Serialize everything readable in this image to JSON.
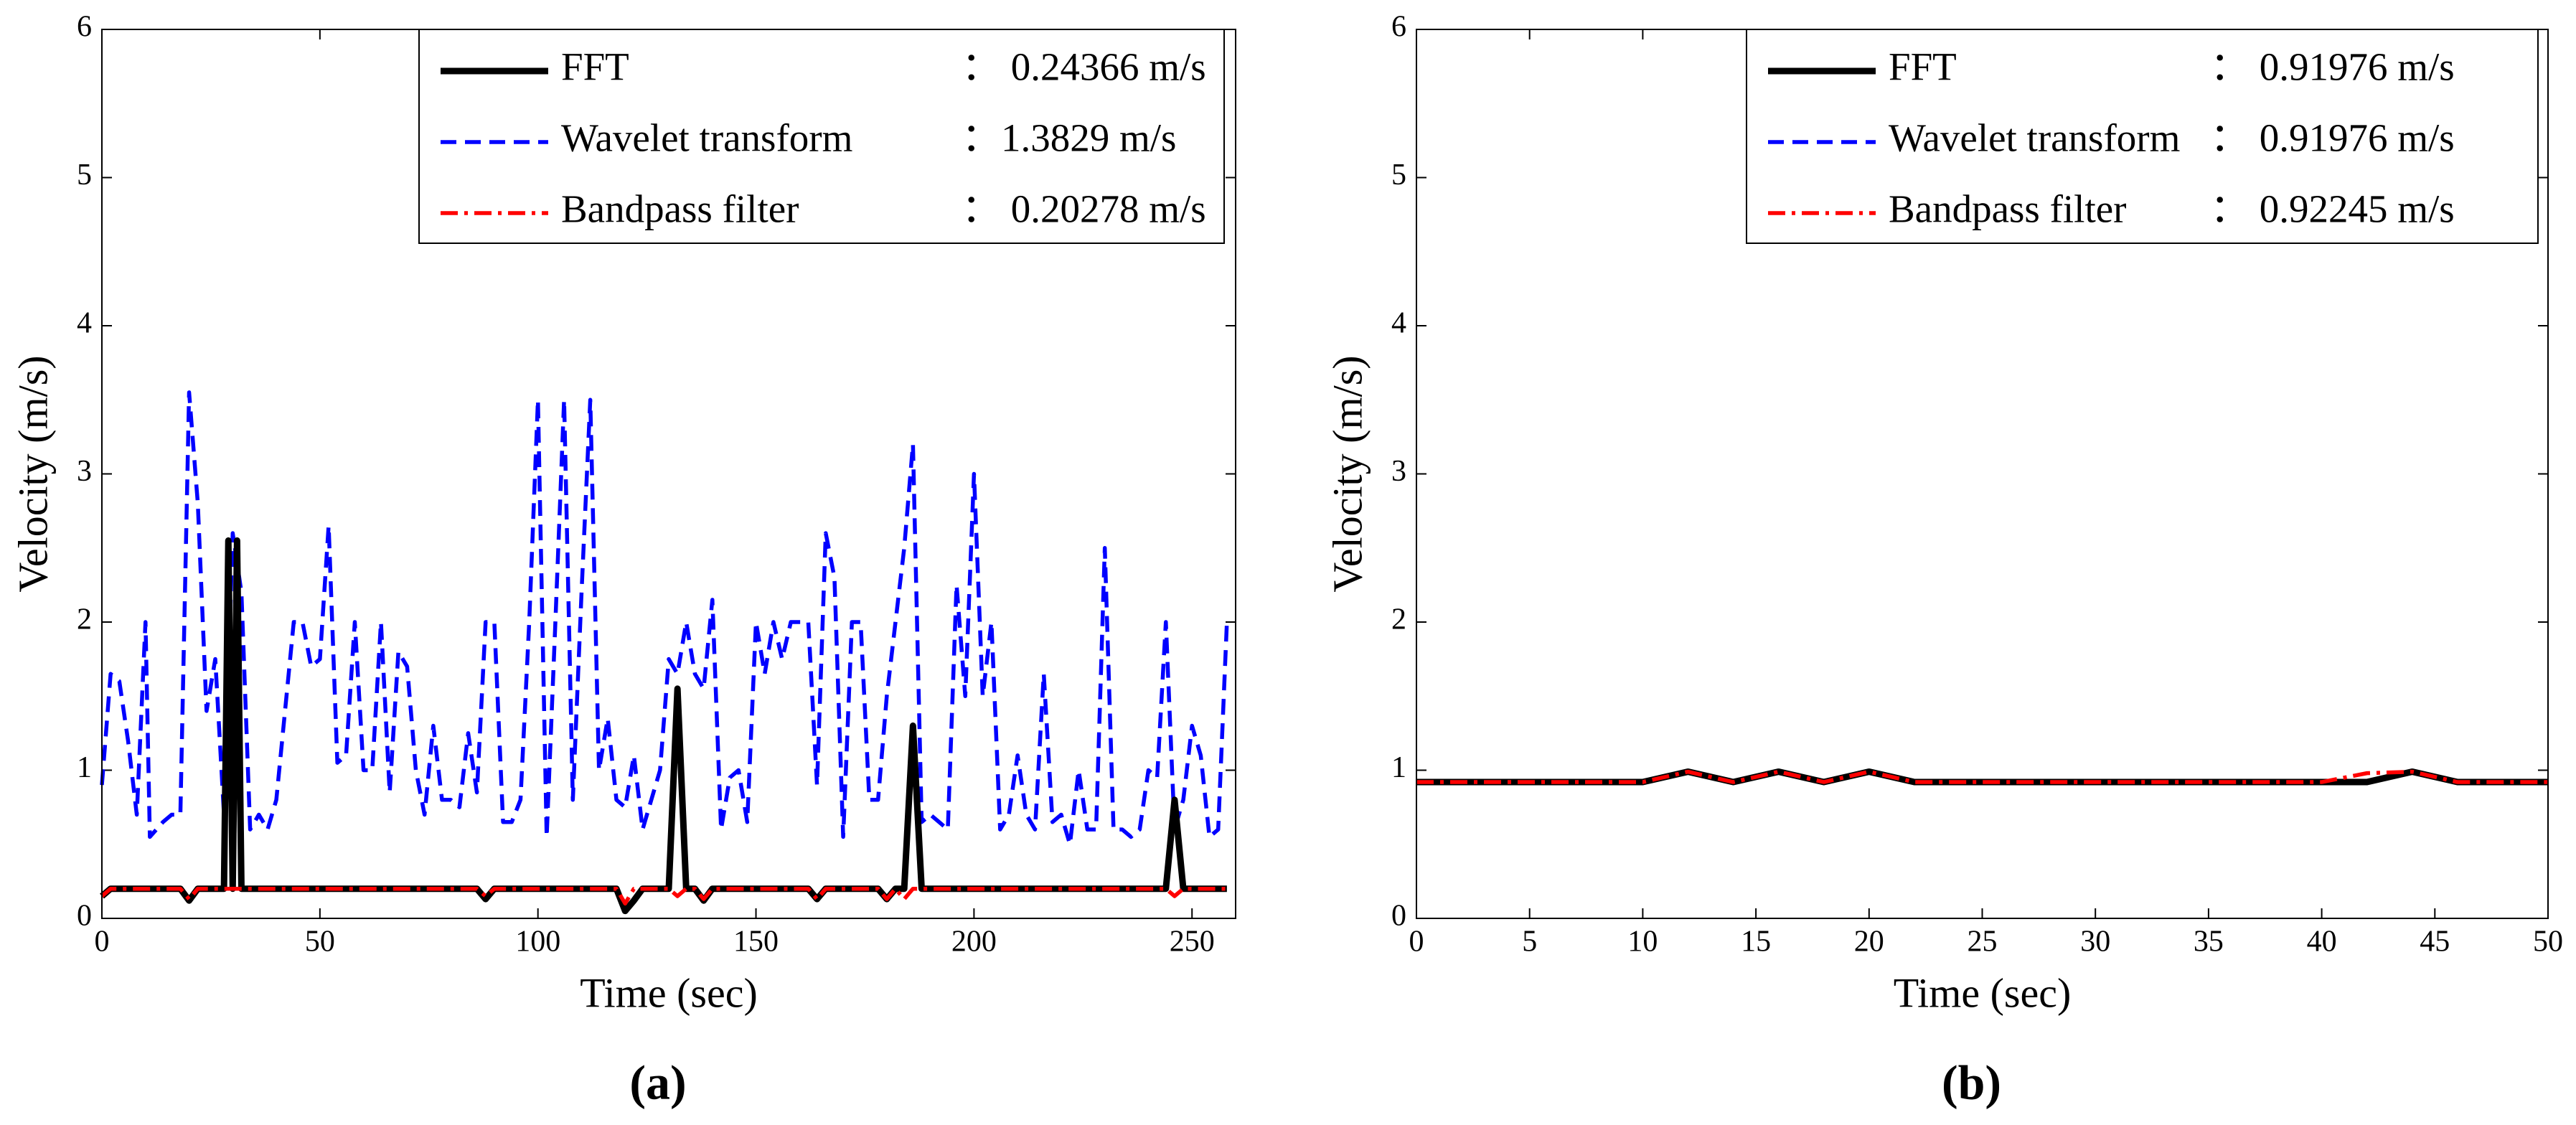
{
  "chart_data": [
    {
      "type": "line",
      "caption": "(a)",
      "xlabel": "Time (sec)",
      "ylabel": "Velocity (m/s)",
      "xlim": [
        0,
        260
      ],
      "ylim": [
        0,
        6
      ],
      "xticks": [
        0,
        50,
        100,
        150,
        200,
        250
      ],
      "yticks": [
        0,
        1,
        2,
        3,
        4,
        5,
        6
      ],
      "legend": "upper right",
      "series": [
        {
          "name": "FFT",
          "legend_value": "： 0.24366 m/s",
          "color": "#000000",
          "line_style": "solid",
          "x": [
            0,
            2,
            18,
            20,
            22,
            28,
            29,
            30,
            31,
            32,
            86,
            88,
            90,
            118,
            120,
            122,
            124,
            130,
            132,
            134,
            136,
            138,
            140,
            162,
            164,
            166,
            178,
            180,
            182,
            184,
            186,
            188,
            244,
            246,
            248,
            258
          ],
          "values": [
            0.15,
            0.2,
            0.2,
            0.12,
            0.2,
            0.2,
            2.55,
            0.2,
            2.55,
            0.2,
            0.2,
            0.13,
            0.2,
            0.2,
            0.05,
            0.12,
            0.2,
            0.2,
            1.55,
            0.2,
            0.2,
            0.12,
            0.2,
            0.2,
            0.13,
            0.2,
            0.2,
            0.13,
            0.2,
            0.2,
            1.3,
            0.2,
            0.2,
            0.8,
            0.2,
            0.2
          ]
        },
        {
          "name": "Wavelet transform",
          "legend_value": "：1.3829 m/s",
          "color": "#0000ff",
          "line_style": "dashed",
          "x": [
            0,
            2,
            4,
            6,
            8,
            10,
            11,
            14,
            16,
            18,
            20,
            22,
            24,
            26,
            28,
            30,
            32,
            34,
            36,
            38,
            40,
            44,
            46,
            48,
            50,
            52,
            54,
            56,
            58,
            60,
            62,
            64,
            66,
            68,
            70,
            72,
            74,
            76,
            78,
            80,
            82,
            84,
            86,
            88,
            90,
            92,
            94,
            96,
            98,
            100,
            102,
            104,
            106,
            108,
            110,
            112,
            114,
            116,
            118,
            120,
            122,
            124,
            126,
            128,
            130,
            132,
            134,
            136,
            138,
            140,
            142,
            144,
            146,
            148,
            150,
            152,
            154,
            156,
            158,
            160,
            162,
            164,
            166,
            168,
            170,
            172,
            174,
            176,
            178,
            180,
            182,
            184,
            186,
            188,
            190,
            192,
            194,
            196,
            198,
            200,
            202,
            204,
            206,
            208,
            210,
            212,
            214,
            216,
            218,
            220,
            222,
            224,
            226,
            228,
            230,
            232,
            234,
            236,
            238,
            240,
            242,
            244,
            246,
            248,
            250,
            252,
            254,
            256,
            258
          ],
          "values": [
            0.9,
            1.65,
            1.6,
            1.2,
            0.7,
            2.0,
            0.55,
            0.65,
            0.7,
            0.7,
            3.55,
            2.8,
            1.4,
            1.75,
            0.7,
            2.6,
            2.2,
            0.6,
            0.7,
            0.6,
            0.8,
            2.0,
            2.0,
            1.7,
            1.75,
            2.65,
            1.05,
            1.1,
            2.0,
            1.0,
            1.0,
            2.0,
            0.85,
            1.8,
            1.7,
            1.0,
            0.7,
            1.3,
            0.8,
            0.8,
            0.75,
            1.25,
            0.85,
            2.0,
            2.0,
            0.65,
            0.65,
            0.8,
            2.0,
            3.5,
            0.55,
            2.0,
            3.5,
            0.8,
            2.2,
            3.5,
            1.0,
            1.35,
            0.8,
            0.75,
            1.1,
            0.6,
            0.8,
            1.0,
            1.75,
            1.65,
            2.0,
            1.65,
            1.55,
            2.15,
            0.6,
            0.95,
            1.0,
            0.65,
            2.0,
            1.65,
            2.0,
            1.75,
            2.0,
            2.0,
            2.0,
            0.9,
            2.6,
            2.3,
            0.55,
            2.0,
            2.0,
            0.8,
            0.8,
            1.5,
            2.0,
            2.5,
            3.2,
            0.65,
            0.7,
            0.65,
            0.6,
            2.25,
            1.5,
            3.0,
            1.5,
            2.0,
            0.6,
            0.7,
            1.1,
            0.7,
            0.6,
            1.65,
            0.65,
            0.7,
            0.5,
            1.0,
            0.6,
            0.6,
            2.5,
            0.6,
            0.6,
            0.55,
            0.6,
            1.0,
            0.95,
            2.0,
            0.6,
            0.8,
            1.3,
            1.1,
            0.55,
            0.6,
            2.0
          ]
        },
        {
          "name": "Bandpass filter",
          "legend_value": "： 0.20278 m/s",
          "color": "#ff0000",
          "line_style": "dashdot",
          "x": [
            0,
            2,
            18,
            20,
            22,
            86,
            88,
            90,
            118,
            120,
            122,
            130,
            132,
            134,
            136,
            138,
            140,
            162,
            164,
            166,
            178,
            180,
            182,
            184,
            186,
            244,
            246,
            248,
            258
          ],
          "values": [
            0.15,
            0.2,
            0.2,
            0.13,
            0.2,
            0.2,
            0.15,
            0.2,
            0.2,
            0.1,
            0.2,
            0.2,
            0.15,
            0.2,
            0.2,
            0.13,
            0.2,
            0.2,
            0.13,
            0.2,
            0.2,
            0.13,
            0.2,
            0.13,
            0.2,
            0.2,
            0.15,
            0.2,
            0.2
          ]
        }
      ]
    },
    {
      "type": "line",
      "caption": "(b)",
      "xlabel": "Time (sec)",
      "ylabel": "Velocity (m/s)",
      "xlim": [
        0,
        50
      ],
      "ylim": [
        0,
        6
      ],
      "xticks": [
        0,
        5,
        10,
        15,
        20,
        25,
        30,
        35,
        40,
        45,
        50
      ],
      "yticks": [
        0,
        1,
        2,
        3,
        4,
        5,
        6
      ],
      "legend": "upper right",
      "series": [
        {
          "name": "FFT",
          "legend_value": "： 0.91976 m/s",
          "color": "#000000",
          "line_style": "solid",
          "x": [
            0,
            2,
            4,
            6,
            8,
            10,
            12,
            14,
            16,
            18,
            20,
            22,
            24,
            26,
            28,
            30,
            32,
            34,
            36,
            38,
            40,
            42,
            44,
            46,
            48,
            50
          ],
          "values": [
            0.92,
            0.92,
            0.92,
            0.92,
            0.92,
            0.92,
            0.99,
            0.92,
            0.99,
            0.92,
            0.99,
            0.92,
            0.92,
            0.92,
            0.92,
            0.92,
            0.92,
            0.92,
            0.92,
            0.92,
            0.92,
            0.92,
            0.99,
            0.92,
            0.92,
            0.92
          ]
        },
        {
          "name": "Wavelet transform",
          "legend_value": "： 0.91976 m/s",
          "color": "#0000ff",
          "line_style": "dashed",
          "x": [
            0,
            2,
            4,
            6,
            8,
            10,
            12,
            14,
            16,
            18,
            20,
            22,
            24,
            26,
            28,
            30,
            32,
            34,
            36,
            38,
            40,
            42,
            44,
            46,
            48,
            50
          ],
          "values": [
            0.92,
            0.92,
            0.92,
            0.92,
            0.92,
            0.92,
            0.99,
            0.92,
            0.99,
            0.92,
            0.99,
            0.92,
            0.92,
            0.92,
            0.92,
            0.92,
            0.92,
            0.92,
            0.92,
            0.92,
            0.92,
            0.92,
            0.99,
            0.92,
            0.92,
            0.92
          ]
        },
        {
          "name": "Bandpass filter",
          "legend_value": "： 0.92245 m/s",
          "color": "#ff0000",
          "line_style": "dashdot",
          "x": [
            0,
            2,
            4,
            6,
            8,
            10,
            12,
            14,
            16,
            18,
            20,
            22,
            24,
            26,
            28,
            30,
            32,
            34,
            36,
            38,
            40,
            42,
            44,
            46,
            48,
            50
          ],
          "values": [
            0.92,
            0.92,
            0.92,
            0.92,
            0.92,
            0.92,
            0.99,
            0.92,
            0.99,
            0.92,
            0.99,
            0.92,
            0.92,
            0.92,
            0.92,
            0.92,
            0.92,
            0.92,
            0.92,
            0.92,
            0.92,
            0.98,
            0.99,
            0.92,
            0.92,
            0.92
          ]
        }
      ]
    }
  ]
}
